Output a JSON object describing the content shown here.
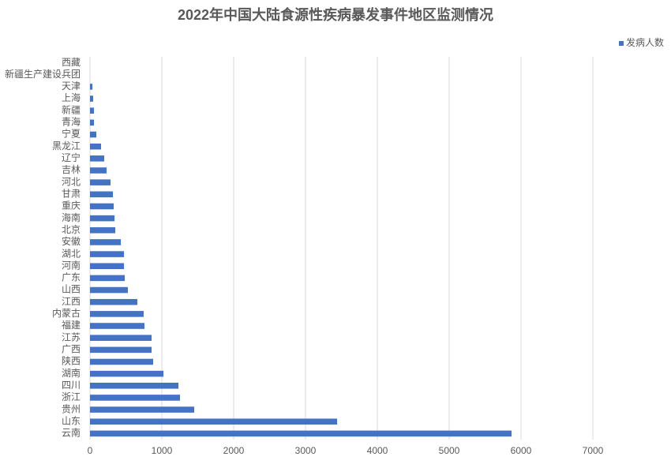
{
  "chart_data": {
    "type": "hbar",
    "title": "2022年中国大陆食源性疾病暴发事件地区监测情况",
    "categories": [
      "西藏",
      "新疆生产建设兵团",
      "天津",
      "上海",
      "新疆",
      "青海",
      "宁夏",
      "黑龙江",
      "辽宁",
      "吉林",
      "河北",
      "甘肃",
      "重庆",
      "海南",
      "北京",
      "安徽",
      "湖北",
      "河南",
      "广东",
      "山西",
      "江西",
      "内蒙古",
      "福建",
      "江苏",
      "广西",
      "陕西",
      "湖南",
      "四川",
      "浙江",
      "贵州",
      "山东",
      "云南"
    ],
    "series": [
      {
        "name": "发病人数",
        "color": "#4472c4",
        "values": [
          0,
          0,
          33,
          44,
          55,
          55,
          88,
          154,
          198,
          231,
          286,
          319,
          330,
          341,
          352,
          429,
          473,
          473,
          484,
          527,
          659,
          747,
          758,
          857,
          857,
          879,
          1022,
          1231,
          1253,
          1451,
          3440,
          5868
        ]
      }
    ],
    "xlim": [
      0,
      7000
    ],
    "xticks": [
      0,
      1000,
      2000,
      3000,
      4000,
      5000,
      6000,
      7000
    ],
    "grid": true,
    "legend": "top-right"
  }
}
